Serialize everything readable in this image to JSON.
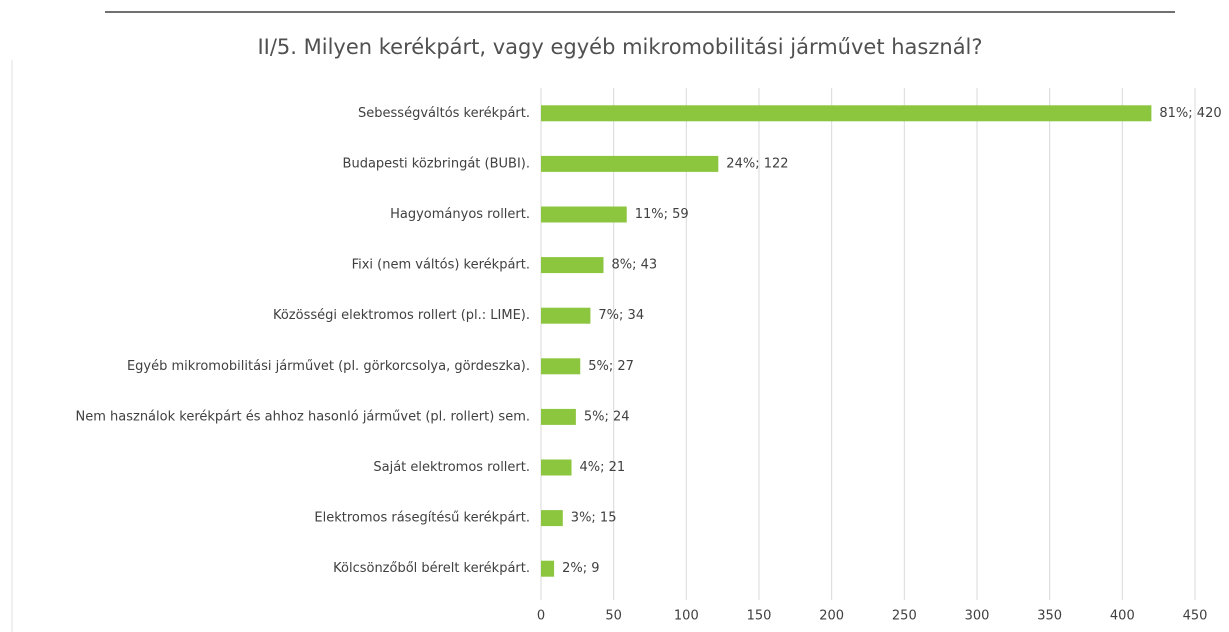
{
  "chart_data": {
    "type": "barh",
    "title": "II/5. Milyen kerékpárt, vagy egyéb mikromobilitási járművet használ?",
    "categories": [
      "Sebességváltós kerékpárt.",
      "Budapesti közbringát (BUBI).",
      "Hagyományos rollert.",
      "Fixi (nem váltós) kerékpárt.",
      "Közösségi elektromos rollert (pl.: LIME).",
      "Egyéb mikromobilitási járművet (pl. görkorcsolya, gördeszka).",
      "Nem használok kerékpárt és ahhoz hasonló járművet (pl. rollert) sem.",
      "Saját elektromos rollert.",
      "Elektromos rásegítésű kerékpárt.",
      "Kölcsönzőből bérelt kerékpárt."
    ],
    "values": [
      420,
      122,
      59,
      43,
      34,
      27,
      24,
      21,
      15,
      9
    ],
    "value_labels": [
      "81%; 420",
      "24%; 122",
      "11%; 59",
      "8%; 43",
      "7%; 34",
      "5%; 27",
      "5%; 24",
      "4%; 21",
      "3%; 15",
      "2%; 9"
    ],
    "color": "#8cc63f",
    "xlim": [
      0,
      450
    ],
    "xticks": [
      0,
      50,
      100,
      150,
      200,
      250,
      300,
      350,
      400,
      450
    ],
    "grid": true
  }
}
